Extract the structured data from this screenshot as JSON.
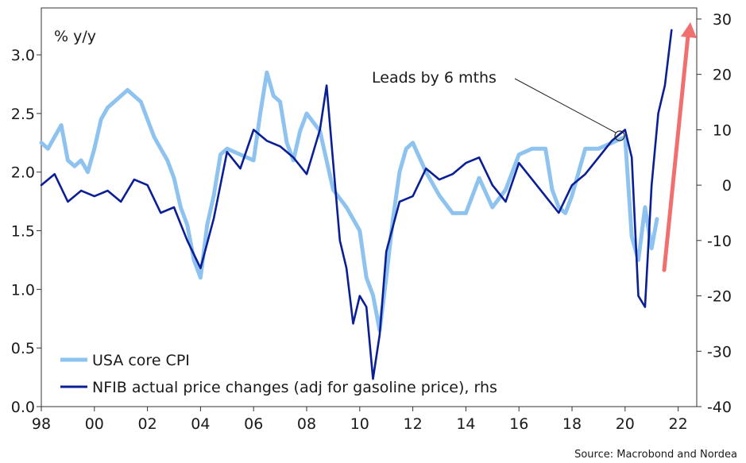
{
  "chart_data": {
    "type": "line",
    "unit_label": "% y/y",
    "source": "Source: Macrobond and Nordea",
    "annotation": "Leads by 6 mths",
    "x_tick_labels": [
      "98",
      "00",
      "02",
      "04",
      "06",
      "08",
      "10",
      "12",
      "14",
      "16",
      "18",
      "20",
      "22"
    ],
    "x_ticks": [
      1998,
      2000,
      2002,
      2004,
      2006,
      2008,
      2010,
      2012,
      2014,
      2016,
      2018,
      2020,
      2022
    ],
    "xlim": [
      1998,
      2022.7
    ],
    "y_left": {
      "lim": [
        0.0,
        3.4
      ],
      "ticks": [
        "0.0",
        "0.5",
        "1.0",
        "1.5",
        "2.0",
        "2.5",
        "3.0"
      ]
    },
    "y_right": {
      "lim": [
        -40,
        32
      ],
      "ticks": [
        "-40",
        "-30",
        "-20",
        "-10",
        "0",
        "10",
        "20",
        "30"
      ]
    },
    "grid": false,
    "legend_position": "bottom-left",
    "series": [
      {
        "name": "USA core CPI",
        "axis": "left",
        "color": "#8ec3f0",
        "x": [
          1998.0,
          1998.25,
          1998.5,
          1998.75,
          1999.0,
          1999.25,
          1999.5,
          1999.75,
          2000.0,
          2000.25,
          2000.5,
          2000.75,
          2001.0,
          2001.25,
          2001.5,
          2001.75,
          2002.0,
          2002.25,
          2002.5,
          2002.75,
          2003.0,
          2003.25,
          2003.5,
          2003.75,
          2004.0,
          2004.25,
          2004.5,
          2004.75,
          2005.0,
          2005.5,
          2006.0,
          2006.25,
          2006.5,
          2006.75,
          2007.0,
          2007.25,
          2007.5,
          2007.75,
          2008.0,
          2008.5,
          2009.0,
          2009.5,
          2010.0,
          2010.25,
          2010.5,
          2010.75,
          2011.0,
          2011.25,
          2011.5,
          2011.75,
          2012.0,
          2012.5,
          2013.0,
          2013.5,
          2014.0,
          2014.5,
          2015.0,
          2015.5,
          2016.0,
          2016.5,
          2017.0,
          2017.25,
          2017.5,
          2017.75,
          2018.0,
          2018.5,
          2019.0,
          2019.5,
          2020.0,
          2020.25,
          2020.5,
          2020.75,
          2021.0,
          2021.2
        ],
        "values": [
          2.25,
          2.2,
          2.3,
          2.4,
          2.1,
          2.05,
          2.1,
          2.0,
          2.2,
          2.45,
          2.55,
          2.6,
          2.65,
          2.7,
          2.65,
          2.6,
          2.45,
          2.3,
          2.2,
          2.1,
          1.95,
          1.7,
          1.55,
          1.25,
          1.1,
          1.55,
          1.8,
          2.15,
          2.2,
          2.15,
          2.1,
          2.5,
          2.85,
          2.65,
          2.6,
          2.25,
          2.1,
          2.35,
          2.5,
          2.35,
          1.85,
          1.7,
          1.5,
          1.1,
          0.95,
          0.65,
          1.1,
          1.6,
          2.0,
          2.2,
          2.25,
          2.0,
          1.8,
          1.65,
          1.65,
          1.95,
          1.7,
          1.85,
          2.15,
          2.2,
          2.2,
          1.85,
          1.7,
          1.65,
          1.8,
          2.2,
          2.2,
          2.25,
          2.3,
          1.45,
          1.25,
          1.7,
          1.35,
          1.6
        ]
      },
      {
        "name": "NFIB actual price changes (adj for gasoline price), rhs",
        "axis": "right",
        "color": "#0a1e96",
        "x": [
          1998.0,
          1998.5,
          1999.0,
          1999.5,
          2000.0,
          2000.5,
          2001.0,
          2001.5,
          2002.0,
          2002.5,
          2003.0,
          2003.5,
          2004.0,
          2004.5,
          2005.0,
          2005.5,
          2006.0,
          2006.5,
          2007.0,
          2007.5,
          2008.0,
          2008.25,
          2008.5,
          2008.75,
          2009.0,
          2009.25,
          2009.5,
          2009.75,
          2010.0,
          2010.25,
          2010.5,
          2010.75,
          2011.0,
          2011.5,
          2012.0,
          2012.5,
          2013.0,
          2013.5,
          2014.0,
          2014.5,
          2015.0,
          2015.5,
          2016.0,
          2016.5,
          2017.0,
          2017.5,
          2018.0,
          2018.5,
          2019.0,
          2019.5,
          2020.0,
          2020.25,
          2020.5,
          2020.75,
          2021.0,
          2021.25,
          2021.5,
          2021.75
        ],
        "values": [
          0,
          2,
          -3,
          -1,
          -2,
          -1,
          -3,
          1,
          0,
          -5,
          -4,
          -10,
          -15,
          -6,
          6,
          3,
          10,
          8,
          7,
          5,
          2,
          6,
          10,
          18,
          4,
          -10,
          -15,
          -25,
          -20,
          -22,
          -35,
          -27,
          -12,
          -3,
          -2,
          3,
          1,
          2,
          4,
          5,
          0,
          -3,
          4,
          1,
          -2,
          -5,
          0,
          2,
          5,
          8,
          10,
          5,
          -20,
          -22,
          0,
          13,
          18,
          28
        ]
      }
    ]
  },
  "colors": {
    "forecast_arrow": "#f07070"
  }
}
